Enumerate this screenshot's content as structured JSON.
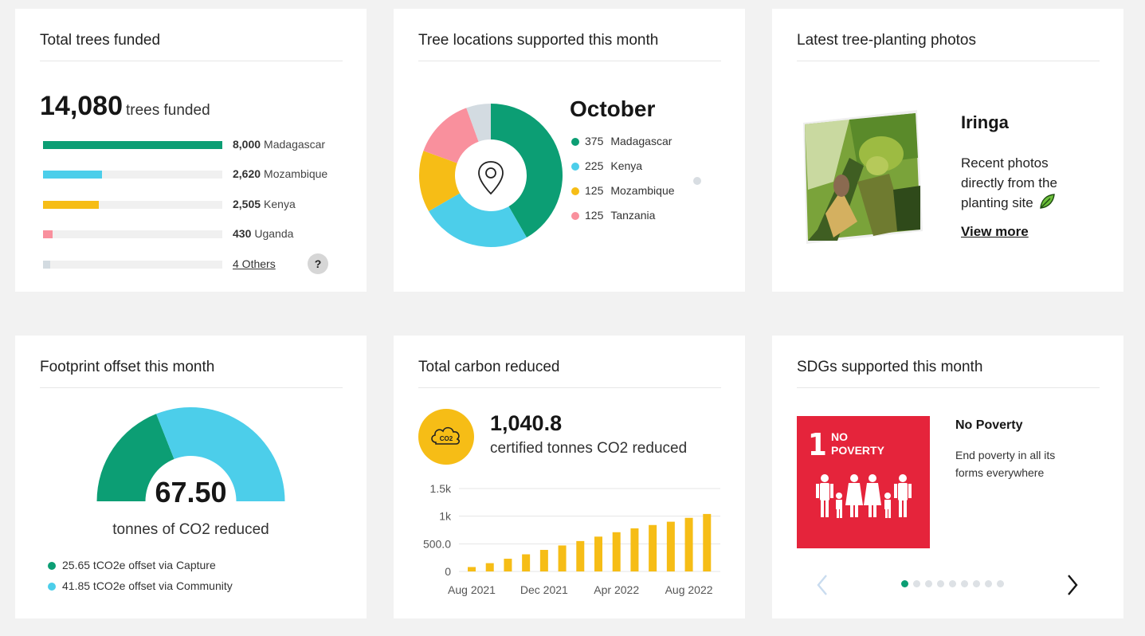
{
  "trees_card": {
    "title": "Total trees funded",
    "total": "14,080",
    "total_unit": "trees funded",
    "rows": [
      {
        "value": "8,000",
        "label": "Madagascar",
        "fill": 1.0,
        "color": "#0c9e74"
      },
      {
        "value": "2,620",
        "label": "Mozambique",
        "fill": 0.33,
        "color": "#4cceea"
      },
      {
        "value": "2,505",
        "label": "Kenya",
        "fill": 0.31,
        "color": "#f6bd16"
      },
      {
        "value": "430",
        "label": "Uganda",
        "fill": 0.054,
        "color": "#f9909d"
      },
      {
        "value": "",
        "label": "4 Others",
        "fill": 0.04,
        "color": "#d3dbe1"
      }
    ],
    "help_label": "?"
  },
  "locations_card": {
    "title": "Tree locations supported this month",
    "month": "October",
    "legend": [
      {
        "value": "375",
        "label": "Madagascar",
        "color": "#0c9e74"
      },
      {
        "value": "225",
        "label": "Kenya",
        "color": "#4cceea"
      },
      {
        "value": "125",
        "label": "Mozambique",
        "color": "#f6bd16"
      },
      {
        "value": "125",
        "label": "Tanzania",
        "color": "#f9909d"
      }
    ],
    "donut_segments": [
      {
        "value": 375,
        "color": "#0c9e74"
      },
      {
        "value": 225,
        "color": "#4cceea"
      },
      {
        "value": 125,
        "color": "#f6bd16"
      },
      {
        "value": 125,
        "color": "#f9909d"
      },
      {
        "value": 50,
        "color": "#d3dbe1"
      }
    ],
    "center_icon": "location-pin-icon"
  },
  "photos_card": {
    "title": "Latest tree-planting photos",
    "location": "Iringa",
    "description": "Recent photos directly from the planting site",
    "description_icon": "leaf-icon",
    "link": "View more"
  },
  "footprint_card": {
    "title": "Footprint offset this month",
    "value": "67.50",
    "caption": "tonnes of CO2 reduced",
    "items": [
      {
        "text": "25.65 tCO2e offset via Capture",
        "color": "#0c9e74",
        "amount": 25.65
      },
      {
        "text": "41.85 tCO2e offset via Community",
        "color": "#4cceea",
        "amount": 41.85
      }
    ]
  },
  "carbon_card": {
    "title": "Total carbon reduced",
    "badge_text": "CO2",
    "value": "1,040.8",
    "caption": "certified tonnes CO2 reduced"
  },
  "chart_data": {
    "type": "bar",
    "categories": [
      "Aug 2021",
      "Sep 2021",
      "Oct 2021",
      "Nov 2021",
      "Dec 2021",
      "Jan 2022",
      "Feb 2022",
      "Mar 2022",
      "Apr 2022",
      "May 2022",
      "Jun 2022",
      "Jul 2022",
      "Aug 2022",
      "Sep 2022"
    ],
    "values": [
      80,
      150,
      230,
      310,
      390,
      470,
      550,
      630,
      710,
      780,
      840,
      900,
      970,
      1040
    ],
    "x_tick_labels": [
      "Aug 2021",
      "Dec 2021",
      "Apr 2022",
      "Aug 2022"
    ],
    "y_tick_labels": [
      "0",
      "500.0",
      "1k",
      "1.5k"
    ],
    "y_ticks": [
      0,
      500,
      1000,
      1500
    ],
    "ylim": [
      0,
      1500
    ],
    "color": "#f6bd16",
    "grid": true
  },
  "sdg_card": {
    "title": "SDGs supported this month",
    "tile_number": "1",
    "tile_name": "NO POVERTY",
    "goal_title": "No Poverty",
    "goal_desc": "End poverty in all its forms everywhere",
    "tile_color": "#e5243b",
    "page_count": 9,
    "active_page": 0
  }
}
